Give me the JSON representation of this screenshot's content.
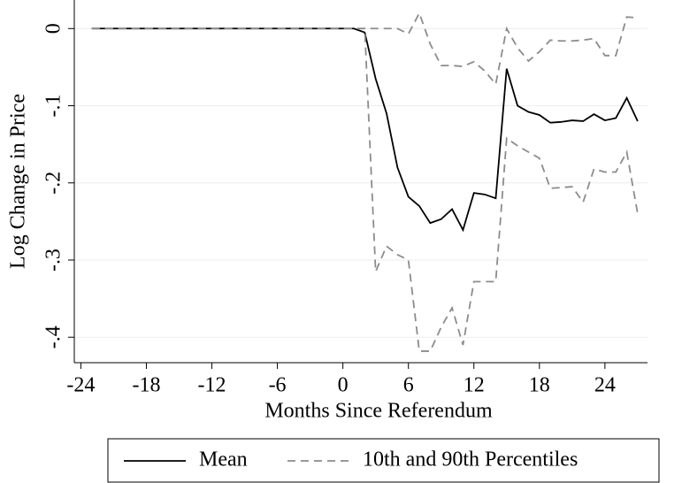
{
  "chart_data": {
    "type": "line",
    "x_label": "Months Since Referendum",
    "y_label": "Log Change in Price",
    "x": [
      -23,
      -22,
      -21,
      -20,
      -19,
      -18,
      -17,
      -16,
      -15,
      -14,
      -13,
      -12,
      -11,
      -10,
      -9,
      -8,
      -7,
      -6,
      -5,
      -4,
      -3,
      -2,
      -1,
      0,
      1,
      2,
      3,
      4,
      5,
      6,
      7,
      8,
      9,
      10,
      11,
      12,
      13,
      14,
      15,
      16,
      17,
      18,
      19,
      20,
      21,
      22,
      23,
      24,
      25,
      26,
      27
    ],
    "series": [
      {
        "name": "Mean",
        "color": "#000000",
        "dashed": false,
        "values": [
          0,
          0,
          0,
          0,
          0,
          0,
          0,
          0,
          0,
          0,
          0,
          0,
          0,
          0,
          0,
          0,
          0,
          0,
          0,
          0,
          0,
          0,
          0,
          0,
          0,
          -0.005,
          -0.065,
          -0.11,
          -0.18,
          -0.218,
          -0.23,
          -0.252,
          -0.247,
          -0.234,
          -0.261,
          -0.213,
          -0.215,
          -0.22,
          -0.052,
          -0.1,
          -0.108,
          -0.112,
          -0.122,
          -0.121,
          -0.119,
          -0.12,
          -0.111,
          -0.119,
          -0.116,
          -0.09,
          -0.12
        ]
      },
      {
        "name": "10th and 90th Percentiles",
        "color": "#8c8c8c",
        "dashed": true,
        "lower": [
          0,
          0,
          0,
          0,
          0,
          0,
          0,
          0,
          0,
          0,
          0,
          0,
          0,
          0,
          0,
          0,
          0,
          0,
          0,
          0,
          0,
          0,
          0,
          0,
          0,
          0,
          -0.315,
          -0.282,
          -0.293,
          -0.3,
          -0.418,
          -0.418,
          -0.387,
          -0.362,
          -0.41,
          -0.328,
          -0.328,
          -0.328,
          -0.142,
          -0.152,
          -0.16,
          -0.168,
          -0.207,
          -0.206,
          -0.205,
          -0.225,
          -0.182,
          -0.186,
          -0.186,
          -0.16,
          -0.24
        ],
        "upper": [
          0,
          0,
          0,
          0,
          0,
          0,
          0,
          0,
          0,
          0,
          0,
          0,
          0,
          0,
          0,
          0,
          0,
          0,
          0,
          0,
          0,
          0,
          0,
          0,
          0,
          0,
          0,
          0,
          0,
          -0.007,
          0.02,
          -0.02,
          -0.048,
          -0.048,
          -0.049,
          -0.043,
          -0.055,
          -0.072,
          0,
          -0.025,
          -0.042,
          -0.03,
          -0.015,
          -0.016,
          -0.016,
          -0.015,
          -0.013,
          -0.035,
          -0.035,
          0.015,
          0.014
        ]
      }
    ],
    "xlim": [
      -24.6,
      27.9
    ],
    "xticks": [
      -24,
      -18,
      -12,
      -6,
      0,
      6,
      12,
      18,
      24
    ],
    "ylim": [
      -0.433,
      0.037
    ],
    "yticks": [
      {
        "value": 0,
        "label": "0"
      },
      {
        "value": -0.1,
        "label": "-.1"
      },
      {
        "value": -0.2,
        "label": "-.2"
      },
      {
        "value": -0.3,
        "label": "-.3"
      },
      {
        "value": -0.4,
        "label": "-.4"
      }
    ],
    "grid": true,
    "legend": "bottom"
  }
}
